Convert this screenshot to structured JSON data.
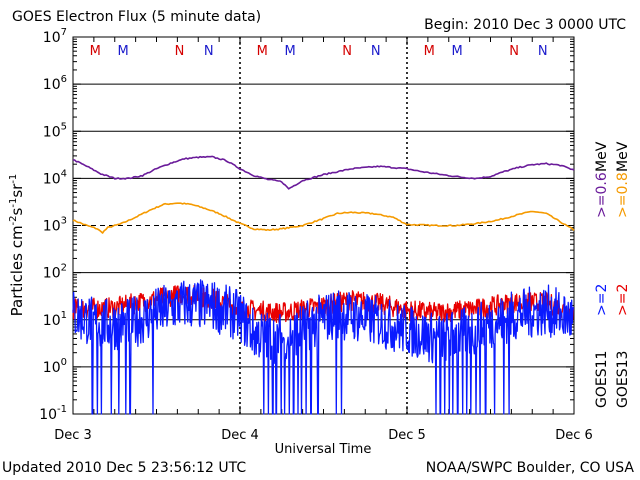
{
  "header": {
    "title": "GOES Electron Flux (5 minute data)",
    "begin": "Begin: 2010 Dec 3 0000 UTC"
  },
  "footer": {
    "updated": "Updated 2010 Dec  5 23:56:12 UTC",
    "credit": "NOAA/SWPC Boulder, CO USA"
  },
  "chart_data": {
    "type": "line",
    "title": "GOES Electron Flux (5 minute data)",
    "xlabel": "Universal Time",
    "ylabel": "Particles cm-2 s-1 sr-1",
    "yscale": "log",
    "ylim": [
      0.1,
      10000000
    ],
    "xlim": [
      0,
      72
    ],
    "x_unit": "hours since 2010 Dec 3 0000 UTC",
    "y_exponents": [
      -1,
      0,
      1,
      2,
      3,
      4,
      5,
      6,
      7
    ],
    "x_ticks": [
      {
        "hour": 0,
        "label": "Dec 3"
      },
      {
        "hour": 24,
        "label": "Dec 4"
      },
      {
        "hour": 48,
        "label": "Dec 5"
      },
      {
        "hour": 72,
        "label": "Dec 6"
      }
    ],
    "markers": [
      {
        "hour": 3.2,
        "label": "M",
        "color": "#d40000"
      },
      {
        "hour": 7.2,
        "label": "M",
        "color": "#1a1acc"
      },
      {
        "hour": 15.3,
        "label": "N",
        "color": "#d40000"
      },
      {
        "hour": 19.5,
        "label": "N",
        "color": "#1a1acc"
      },
      {
        "hour": 27.2,
        "label": "M",
        "color": "#d40000"
      },
      {
        "hour": 31.2,
        "label": "M",
        "color": "#1a1acc"
      },
      {
        "hour": 39.4,
        "label": "N",
        "color": "#d40000"
      },
      {
        "hour": 43.5,
        "label": "N",
        "color": "#1a1acc"
      },
      {
        "hour": 51.2,
        "label": "M",
        "color": "#d40000"
      },
      {
        "hour": 55.2,
        "label": "M",
        "color": "#1a1acc"
      },
      {
        "hour": 63.4,
        "label": "N",
        "color": "#d40000"
      },
      {
        "hour": 67.5,
        "label": "N",
        "color": "#1a1acc"
      }
    ],
    "series": [
      {
        "name": ">=0.6 MeV",
        "satellite": "GOES13",
        "color": "#6a1b9a",
        "points": [
          [
            0,
            25000
          ],
          [
            2,
            18000
          ],
          [
            4,
            12500
          ],
          [
            6,
            10000
          ],
          [
            8,
            10000
          ],
          [
            10,
            11500
          ],
          [
            12,
            16000
          ],
          [
            14,
            21000
          ],
          [
            16,
            26000
          ],
          [
            18,
            28000
          ],
          [
            20,
            28500
          ],
          [
            22,
            24000
          ],
          [
            24,
            16000
          ],
          [
            26,
            11500
          ],
          [
            28,
            9500
          ],
          [
            30,
            8500
          ],
          [
            31,
            6000
          ],
          [
            33,
            9000
          ],
          [
            36,
            12000
          ],
          [
            40,
            16000
          ],
          [
            44,
            18000
          ],
          [
            48,
            16000
          ],
          [
            50,
            14000
          ],
          [
            53,
            12000
          ],
          [
            56,
            10500
          ],
          [
            58,
            10000
          ],
          [
            60,
            11000
          ],
          [
            62,
            14000
          ],
          [
            64,
            17000
          ],
          [
            66,
            19500
          ],
          [
            68,
            20500
          ],
          [
            70,
            19000
          ],
          [
            72,
            15000
          ]
        ]
      },
      {
        "name": ">=0.8 MeV",
        "satellite": "GOES11",
        "color": "#f59a00",
        "points": [
          [
            0,
            1300
          ],
          [
            2,
            1000
          ],
          [
            3.5,
            850
          ],
          [
            4.2,
            700
          ],
          [
            5,
            900
          ],
          [
            7,
            1100
          ],
          [
            9,
            1500
          ],
          [
            11,
            2100
          ],
          [
            13,
            2800
          ],
          [
            15,
            3000
          ],
          [
            17,
            2800
          ],
          [
            19,
            2300
          ],
          [
            21,
            1800
          ],
          [
            24,
            1100
          ],
          [
            26,
            850
          ],
          [
            28,
            800
          ],
          [
            30,
            850
          ],
          [
            33,
            1000
          ],
          [
            36,
            1400
          ],
          [
            38,
            1800
          ],
          [
            40,
            1900
          ],
          [
            43,
            1800
          ],
          [
            46,
            1500
          ],
          [
            48,
            1050
          ],
          [
            52,
            1000
          ],
          [
            55,
            1000
          ],
          [
            58,
            1100
          ],
          [
            61,
            1300
          ],
          [
            64,
            1700
          ],
          [
            66,
            2000
          ],
          [
            68,
            1800
          ],
          [
            70,
            1200
          ],
          [
            72,
            800
          ]
        ]
      },
      {
        "name": ">=2 MeV",
        "satellite": "GOES13",
        "color": "#e80000",
        "base_points": [
          [
            0,
            17
          ],
          [
            6,
            18
          ],
          [
            12,
            28
          ],
          [
            16,
            36
          ],
          [
            20,
            28
          ],
          [
            24,
            17
          ],
          [
            30,
            14
          ],
          [
            36,
            20
          ],
          [
            40,
            26
          ],
          [
            44,
            22
          ],
          [
            48,
            16
          ],
          [
            52,
            14
          ],
          [
            58,
            17
          ],
          [
            64,
            24
          ],
          [
            68,
            23
          ],
          [
            72,
            14
          ]
        ]
      },
      {
        "name": ">=2 MeV",
        "satellite": "GOES11",
        "color": "#0a1aff",
        "base_points": [
          [
            0,
            13
          ],
          [
            4,
            8
          ],
          [
            8,
            8
          ],
          [
            12,
            14
          ],
          [
            16,
            22
          ],
          [
            20,
            20
          ],
          [
            24,
            12
          ],
          [
            26,
            5
          ],
          [
            30,
            4
          ],
          [
            34,
            8
          ],
          [
            38,
            14
          ],
          [
            40,
            12
          ],
          [
            44,
            9
          ],
          [
            48,
            6
          ],
          [
            52,
            4
          ],
          [
            56,
            5
          ],
          [
            60,
            8
          ],
          [
            64,
            13
          ],
          [
            68,
            16
          ],
          [
            72,
            10
          ]
        ],
        "dropouts_to": 0.1,
        "dropout_hours": [
          2.8,
          3.5,
          4.1,
          5.5,
          6.6,
          7.6,
          8.2,
          11.5,
          27.4,
          28.1,
          28.7,
          29.2,
          29.9,
          30.4,
          31.1,
          31.7,
          32.3,
          32.8,
          33.5,
          34.2,
          35.2,
          37.8,
          38.6,
          52.2,
          52.8,
          53.4,
          54.1,
          54.6,
          55.3,
          56.0,
          56.6,
          57.2,
          57.9,
          58.5,
          59.3,
          60.6,
          61.9,
          62.7
        ]
      }
    ],
    "legend": {
      "satellites": [
        "GOES11",
        "GOES13"
      ],
      "energies": [
        ">=2",
        ">=2",
        ">=0.6",
        ">=0.8"
      ],
      "unit": "MeV"
    }
  }
}
